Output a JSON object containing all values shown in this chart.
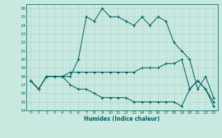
{
  "xlabel": "Humidex (Indice chaleur)",
  "xlim": [
    -0.5,
    23.5
  ],
  "ylim": [
    14,
    26.5
  ],
  "yticks": [
    14,
    15,
    16,
    17,
    18,
    19,
    20,
    21,
    22,
    23,
    24,
    25,
    26
  ],
  "xticks": [
    0,
    1,
    2,
    3,
    4,
    5,
    6,
    7,
    8,
    9,
    10,
    11,
    12,
    13,
    14,
    15,
    16,
    17,
    18,
    19,
    20,
    21,
    22,
    23
  ],
  "bg_color": "#c8e8e0",
  "line_color": "#006060",
  "grid_color": "#b0d8d0",
  "line1": [
    17.5,
    16.5,
    18.0,
    18.0,
    18.0,
    18.0,
    20.0,
    25.0,
    24.5,
    26.0,
    25.0,
    25.0,
    24.5,
    24.0,
    25.0,
    24.0,
    25.0,
    24.5,
    22.0,
    21.0,
    20.0,
    16.5,
    18.0,
    15.5
  ],
  "line2": [
    17.5,
    16.5,
    18.0,
    18.0,
    18.0,
    18.5,
    18.5,
    18.5,
    18.5,
    18.5,
    18.5,
    18.5,
    18.5,
    18.5,
    19.0,
    19.0,
    19.0,
    19.5,
    19.5,
    20.0,
    16.5,
    17.5,
    16.5,
    15.0
  ],
  "line3": [
    17.5,
    16.5,
    18.0,
    18.0,
    18.0,
    17.0,
    16.5,
    16.5,
    16.0,
    15.5,
    15.5,
    15.5,
    15.5,
    15.0,
    15.0,
    15.0,
    15.0,
    15.0,
    15.0,
    14.5,
    16.5,
    17.5,
    16.5,
    14.5
  ]
}
